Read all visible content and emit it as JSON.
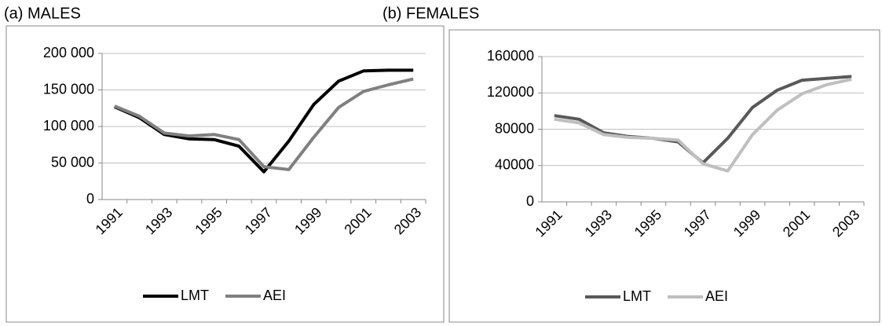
{
  "chart_data": [
    {
      "type": "line",
      "title": "(a) MALES",
      "categories": [
        "1991",
        null,
        "1993",
        null,
        "1995",
        null,
        "1997",
        null,
        "1999",
        null,
        "2001",
        null,
        "2003"
      ],
      "series": [
        {
          "name": "LMT",
          "color": "#000000",
          "values": [
            127000,
            112000,
            89000,
            83000,
            82000,
            73000,
            38000,
            80000,
            130000,
            162000,
            176000,
            177000,
            177000
          ]
        },
        {
          "name": "AEI",
          "color": "#808080",
          "values": [
            128000,
            114000,
            91000,
            87000,
            89000,
            82000,
            45000,
            41000,
            85000,
            126000,
            148000,
            157000,
            165000
          ]
        }
      ],
      "ylim": [
        0,
        200000
      ],
      "yticks": [
        0,
        {
          "value": 50000,
          "label": "50 000"
        },
        {
          "value": 100000,
          "label": "100 000"
        },
        {
          "value": 150000,
          "label": "150 000"
        },
        {
          "value": 200000,
          "label": "200 000"
        }
      ],
      "grid": true,
      "legend": "bottom"
    },
    {
      "type": "line",
      "title": "(b) FEMALES",
      "categories": [
        "1991",
        null,
        "1993",
        null,
        "1995",
        null,
        "1997",
        null,
        "1999",
        null,
        "2001",
        null,
        "2003"
      ],
      "series": [
        {
          "name": "LMT",
          "color": "#595959",
          "values": [
            95000,
            91000,
            76000,
            72000,
            70000,
            66000,
            43000,
            70000,
            104000,
            123000,
            134000,
            136000,
            138000
          ]
        },
        {
          "name": "AEI",
          "color": "#bfbfbf",
          "values": [
            91000,
            87000,
            74000,
            71000,
            70000,
            68000,
            42000,
            34000,
            74000,
            101000,
            119000,
            129000,
            135000
          ]
        }
      ],
      "ylim": [
        0,
        160000
      ],
      "yticks": [
        0,
        40000,
        80000,
        120000,
        160000
      ],
      "grid": true,
      "legend": "bottom"
    }
  ]
}
